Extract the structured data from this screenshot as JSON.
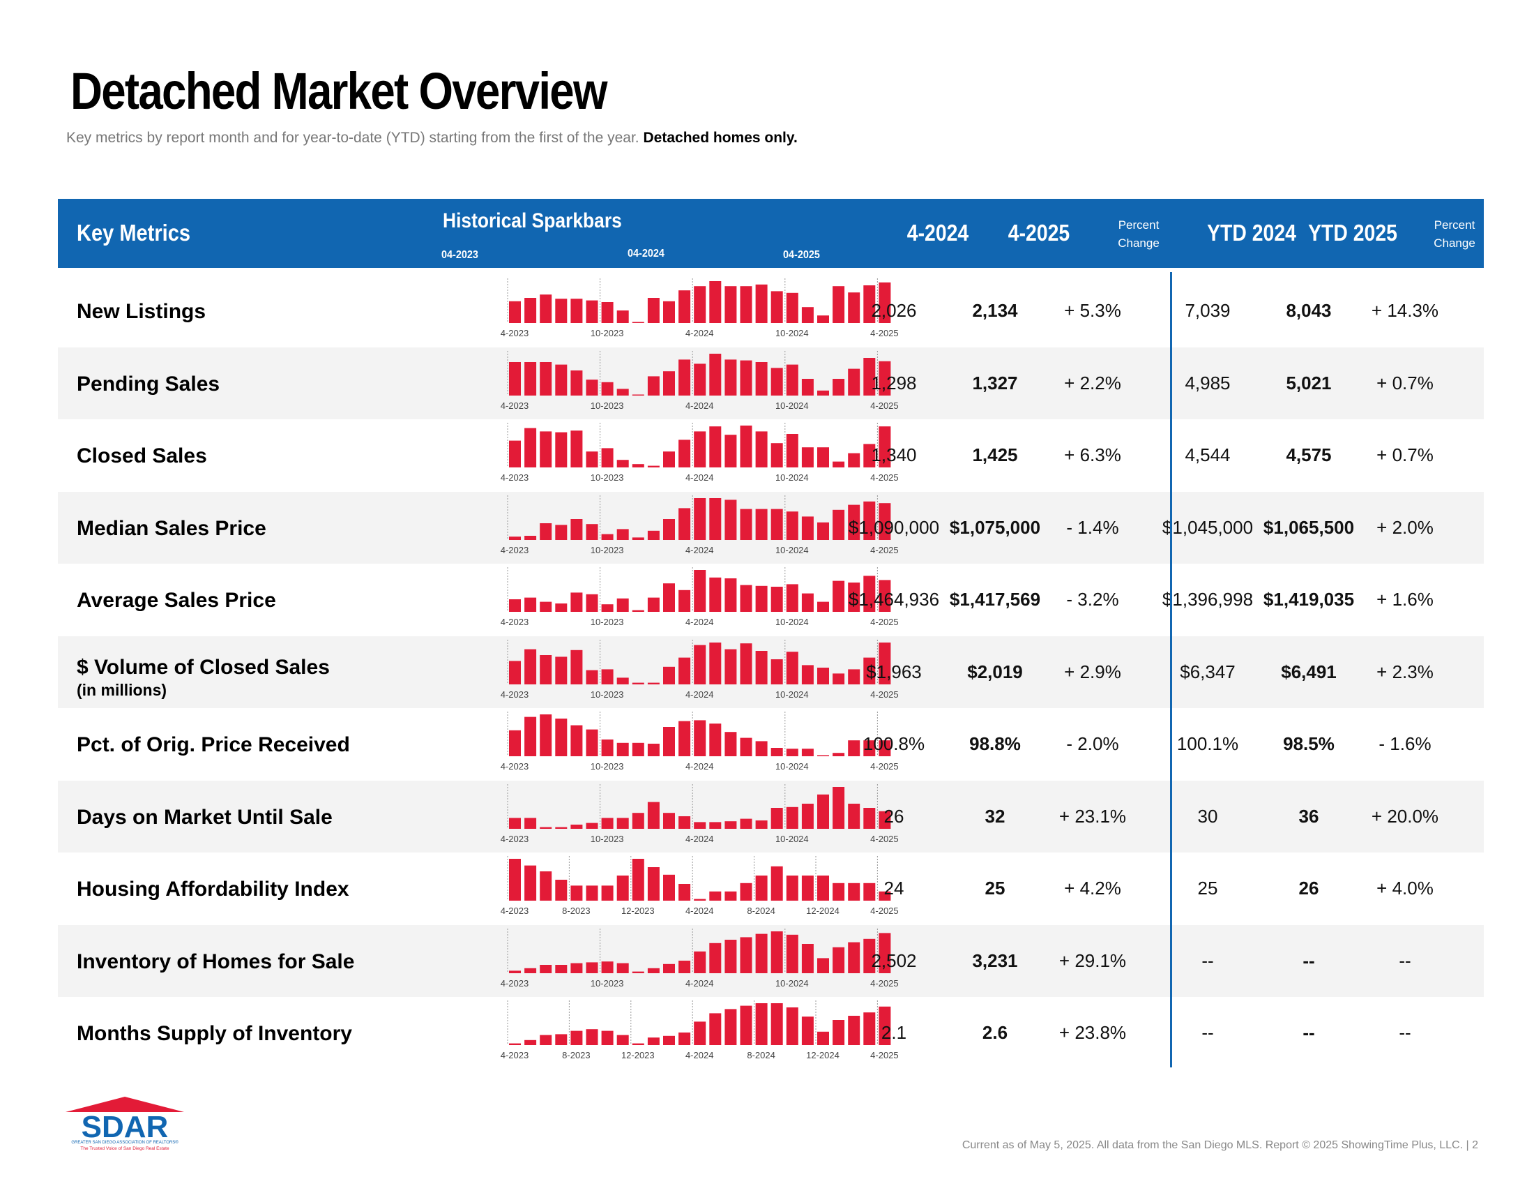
{
  "title": "Detached Market Overview",
  "subtitle": "Key metrics by report month and for year-to-date (YTD) starting from the first of the year.",
  "subtitle_bold": "Detached homes only.",
  "header": {
    "key_metrics": "Key Metrics",
    "sparkbars": "Historical Sparkbars",
    "spark_label_1": "04-2023",
    "spark_label_2": "04-2024",
    "spark_label_3": "04-2025",
    "col_prev": "4-2024",
    "col_curr": "4-2025",
    "pct_change_1": "Percent",
    "pct_change_2": "Change",
    "col_ytd_prev": "YTD 2024",
    "col_ytd_curr": "YTD 2025"
  },
  "rows": [
    {
      "metric": "New Listings",
      "sub": "",
      "prev": "2,026",
      "curr": "2,134",
      "pct": "+ 5.3%",
      "ytd_prev": "7,039",
      "ytd_curr": "8,043",
      "ytd_pct": "+ 14.3%",
      "ticks": [
        "4-2023",
        "10-2023",
        "4-2024",
        "10-2024",
        "4-2025"
      ],
      "tick_idx": [
        0,
        6,
        12,
        18,
        24
      ],
      "bars": [
        0.52,
        0.6,
        0.68,
        0.58,
        0.58,
        0.54,
        0.5,
        0.3,
        0.02,
        0.6,
        0.52,
        0.78,
        0.88,
        1.0,
        0.88,
        0.88,
        0.92,
        0.76,
        0.72,
        0.38,
        0.18,
        0.88,
        0.73,
        0.9,
        0.97
      ]
    },
    {
      "metric": "Pending Sales",
      "sub": "",
      "prev": "1,298",
      "curr": "1,327",
      "pct": "+ 2.2%",
      "ytd_prev": "4,985",
      "ytd_curr": "5,021",
      "ytd_pct": "+ 0.7%",
      "ticks": [
        "4-2023",
        "10-2023",
        "4-2024",
        "10-2024",
        "4-2025"
      ],
      "tick_idx": [
        0,
        6,
        12,
        18,
        24
      ],
      "bars": [
        0.8,
        0.8,
        0.8,
        0.74,
        0.6,
        0.38,
        0.32,
        0.16,
        0.02,
        0.46,
        0.58,
        0.86,
        0.76,
        1.0,
        0.86,
        0.84,
        0.8,
        0.66,
        0.74,
        0.4,
        0.12,
        0.4,
        0.64,
        0.9,
        0.82
      ]
    },
    {
      "metric": "Closed Sales",
      "sub": "",
      "prev": "1,340",
      "curr": "1,425",
      "pct": "+ 6.3%",
      "ytd_prev": "4,544",
      "ytd_curr": "4,575",
      "ytd_pct": "+ 0.7%",
      "ticks": [
        "4-2023",
        "10-2023",
        "4-2024",
        "10-2024",
        "4-2025"
      ],
      "tick_idx": [
        0,
        6,
        12,
        18,
        24
      ],
      "bars": [
        0.64,
        0.94,
        0.86,
        0.84,
        0.88,
        0.38,
        0.46,
        0.18,
        0.08,
        0.04,
        0.38,
        0.66,
        0.86,
        0.98,
        0.78,
        1.0,
        0.86,
        0.58,
        0.8,
        0.48,
        0.48,
        0.14,
        0.34,
        0.56,
        0.98
      ]
    },
    {
      "metric": "Median Sales Price",
      "sub": "",
      "prev": "$1,090,000",
      "curr": "$1,075,000",
      "pct": "- 1.4%",
      "ytd_prev": "$1,045,000",
      "ytd_curr": "$1,065,500",
      "ytd_pct": "+ 2.0%",
      "ticks": [
        "4-2023",
        "10-2023",
        "4-2024",
        "10-2024",
        "4-2025"
      ],
      "tick_idx": [
        0,
        6,
        12,
        18,
        24
      ],
      "bars": [
        0.08,
        0.1,
        0.4,
        0.36,
        0.5,
        0.38,
        0.14,
        0.26,
        0.06,
        0.22,
        0.5,
        0.76,
        1.0,
        1.0,
        0.96,
        0.74,
        0.74,
        0.74,
        0.68,
        0.56,
        0.42,
        0.72,
        0.84,
        0.92,
        0.88
      ]
    },
    {
      "metric": "Average Sales Price",
      "sub": "",
      "prev": "$1,464,936",
      "curr": "$1,417,569",
      "pct": "- 3.2%",
      "ytd_prev": "$1,396,998",
      "ytd_curr": "$1,419,035",
      "ytd_pct": "+ 1.6%",
      "ticks": [
        "4-2023",
        "10-2023",
        "4-2024",
        "10-2024",
        "4-2025"
      ],
      "tick_idx": [
        0,
        6,
        12,
        18,
        24
      ],
      "bars": [
        0.3,
        0.34,
        0.24,
        0.2,
        0.46,
        0.42,
        0.18,
        0.32,
        0.04,
        0.34,
        0.68,
        0.52,
        1.0,
        0.82,
        0.8,
        0.64,
        0.62,
        0.6,
        0.66,
        0.44,
        0.24,
        0.74,
        0.7,
        0.86,
        0.76
      ]
    },
    {
      "metric": "$ Volume of Closed Sales",
      "sub": "(in millions)",
      "prev": "$1,963",
      "curr": "$2,019",
      "pct": "+ 2.9%",
      "ytd_prev": "$6,347",
      "ytd_curr": "$6,491",
      "ytd_pct": "+ 2.3%",
      "ticks": [
        "4-2023",
        "10-2023",
        "4-2024",
        "10-2024",
        "4-2025"
      ],
      "tick_idx": [
        0,
        6,
        12,
        18,
        24
      ],
      "bars": [
        0.56,
        0.84,
        0.7,
        0.66,
        0.82,
        0.34,
        0.36,
        0.16,
        0.04,
        0.04,
        0.42,
        0.64,
        0.94,
        1.0,
        0.84,
        0.98,
        0.8,
        0.6,
        0.78,
        0.46,
        0.4,
        0.26,
        0.36,
        0.64,
        1.0
      ]
    },
    {
      "metric": "Pct. of Orig. Price Received",
      "sub": "",
      "prev": "100.8%",
      "curr": "98.8%",
      "pct": "- 2.0%",
      "ytd_prev": "100.1%",
      "ytd_curr": "98.5%",
      "ytd_pct": "- 1.6%",
      "ticks": [
        "4-2023",
        "10-2023",
        "4-2024",
        "10-2024",
        "4-2025"
      ],
      "tick_idx": [
        0,
        6,
        12,
        18,
        24
      ],
      "bars": [
        0.62,
        0.94,
        1.0,
        0.9,
        0.74,
        0.64,
        0.4,
        0.32,
        0.32,
        0.3,
        0.7,
        0.84,
        0.86,
        0.78,
        0.58,
        0.44,
        0.36,
        0.2,
        0.18,
        0.18,
        0.02,
        0.08,
        0.38,
        0.38,
        0.38
      ]
    },
    {
      "metric": "Days on Market Until Sale",
      "sub": "",
      "prev": "26",
      "curr": "32",
      "pct": "+ 23.1%",
      "ytd_prev": "30",
      "ytd_curr": "36",
      "ytd_pct": "+ 20.0%",
      "ticks": [
        "4-2023",
        "10-2023",
        "4-2024",
        "10-2024",
        "4-2025"
      ],
      "tick_idx": [
        0,
        6,
        12,
        18,
        24
      ],
      "bars": [
        0.26,
        0.26,
        0.04,
        0.04,
        0.1,
        0.14,
        0.26,
        0.26,
        0.38,
        0.64,
        0.38,
        0.3,
        0.16,
        0.16,
        0.18,
        0.24,
        0.2,
        0.5,
        0.52,
        0.6,
        0.82,
        1.0,
        0.6,
        0.5,
        0.42
      ]
    },
    {
      "metric": "Housing Affordability Index",
      "sub": "",
      "prev": "24",
      "curr": "25",
      "pct": "+ 4.2%",
      "ytd_prev": "25",
      "ytd_curr": "26",
      "ytd_pct": "+ 4.0%",
      "ticks": [
        "4-2023",
        "8-2023",
        "12-2023",
        "4-2024",
        "8-2024",
        "12-2024",
        "4-2025"
      ],
      "tick_idx": [
        0,
        4,
        8,
        12,
        16,
        20,
        24
      ],
      "bars": [
        1.0,
        0.84,
        0.7,
        0.5,
        0.36,
        0.36,
        0.36,
        0.6,
        1.0,
        0.8,
        0.62,
        0.4,
        0.04,
        0.22,
        0.22,
        0.42,
        0.6,
        0.82,
        0.6,
        0.6,
        0.6,
        0.42,
        0.42,
        0.42,
        0.22
      ]
    },
    {
      "metric": "Inventory of Homes for Sale",
      "sub": "",
      "prev": "2,502",
      "curr": "3,231",
      "pct": "+ 29.1%",
      "ytd_prev": "--",
      "ytd_curr": "--",
      "ytd_pct": "--",
      "ticks": [
        "4-2023",
        "10-2023",
        "4-2024",
        "10-2024",
        "4-2025"
      ],
      "tick_idx": [
        0,
        6,
        12,
        18,
        24
      ],
      "bars": [
        0.06,
        0.12,
        0.2,
        0.2,
        0.24,
        0.26,
        0.28,
        0.24,
        0.04,
        0.12,
        0.22,
        0.3,
        0.52,
        0.72,
        0.8,
        0.86,
        0.94,
        1.0,
        0.92,
        0.7,
        0.36,
        0.62,
        0.74,
        0.82,
        0.96
      ]
    },
    {
      "metric": "Months Supply of Inventory",
      "sub": "",
      "prev": "2.1",
      "curr": "2.6",
      "pct": "+ 23.8%",
      "ytd_prev": "--",
      "ytd_curr": "--",
      "ytd_pct": "--",
      "ticks": [
        "4-2023",
        "8-2023",
        "12-2023",
        "4-2024",
        "8-2024",
        "12-2024",
        "4-2025"
      ],
      "tick_idx": [
        0,
        4,
        8,
        12,
        16,
        20,
        24
      ],
      "bars": [
        0.04,
        0.12,
        0.24,
        0.26,
        0.34,
        0.38,
        0.34,
        0.24,
        0.04,
        0.18,
        0.22,
        0.3,
        0.56,
        0.76,
        0.86,
        0.94,
        1.0,
        1.0,
        0.9,
        0.68,
        0.32,
        0.6,
        0.7,
        0.78,
        0.92
      ]
    }
  ],
  "footer": "Current as of May 5, 2025. All data from the San Diego MLS. Report © 2025 ShowingTime Plus, LLC.  |  2",
  "logo": {
    "text": "SDAR",
    "line1": "GREATER SAN DIEGO ASSOCIATION OF REALTORS®",
    "line2": "The Trusted Voice of San Diego Real Estate"
  },
  "colors": {
    "accent": "#1166b1",
    "bar": "#e31b37",
    "shade": "#f3f3f3"
  }
}
